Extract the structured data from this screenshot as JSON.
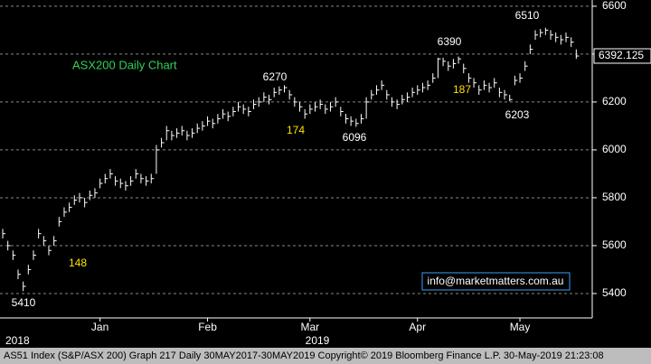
{
  "chart_data": {
    "type": "ohlc",
    "title": "ASX200 Daily Chart",
    "high": [
      5670,
      5620,
      5580,
      5500,
      5450,
      5520,
      5580,
      5670,
      5640,
      5600,
      5640,
      5720,
      5760,
      5780,
      5810,
      5820,
      5800,
      5830,
      5840,
      5880,
      5900,
      5920,
      5890,
      5880,
      5870,
      5890,
      5920,
      5900,
      5890,
      5900,
      6020,
      6050,
      6100,
      6080,
      6090,
      6100,
      6080,
      6090,
      6110,
      6120,
      6140,
      6130,
      6150,
      6170,
      6160,
      6180,
      6200,
      6190,
      6180,
      6210,
      6220,
      6240,
      6230,
      6260,
      6265,
      6270,
      6250,
      6220,
      6200,
      6170,
      6190,
      6200,
      6210,
      6190,
      6200,
      6220,
      6180,
      6150,
      6140,
      6130,
      6150,
      6220,
      6250,
      6270,
      6290,
      6250,
      6220,
      6210,
      6230,
      6240,
      6260,
      6270,
      6280,
      6290,
      6320,
      6385,
      6385,
      6370,
      6380,
      6390,
      6360,
      6320,
      6300,
      6270,
      6290,
      6280,
      6300,
      6260,
      6250,
      6230,
      6310,
      6320,
      6370,
      6440,
      6500,
      6505,
      6510,
      6500,
      6490,
      6480,
      6490,
      6470,
      6420
    ],
    "low": [
      5630,
      5580,
      5540,
      5460,
      5410,
      5480,
      5540,
      5630,
      5600,
      5560,
      5600,
      5680,
      5720,
      5740,
      5770,
      5780,
      5760,
      5790,
      5800,
      5840,
      5860,
      5880,
      5850,
      5840,
      5830,
      5850,
      5880,
      5860,
      5850,
      5860,
      5900,
      6010,
      6040,
      6040,
      6050,
      6060,
      6040,
      6050,
      6070,
      6080,
      6100,
      6090,
      6110,
      6130,
      6120,
      6140,
      6160,
      6150,
      6140,
      6170,
      6180,
      6200,
      6190,
      6220,
      6230,
      6240,
      6210,
      6180,
      6160,
      6130,
      6150,
      6160,
      6170,
      6150,
      6160,
      6180,
      6140,
      6110,
      6100,
      6096,
      6110,
      6130,
      6210,
      6230,
      6250,
      6210,
      6180,
      6170,
      6190,
      6200,
      6220,
      6230,
      6240,
      6250,
      6280,
      6300,
      6350,
      6330,
      6340,
      6360,
      6320,
      6280,
      6260,
      6230,
      6250,
      6240,
      6260,
      6220,
      6210,
      6203,
      6270,
      6280,
      6330,
      6400,
      6460,
      6470,
      6480,
      6460,
      6450,
      6440,
      6450,
      6430,
      6380
    ],
    "close": [
      5650,
      5600,
      5560,
      5480,
      5430,
      5500,
      5560,
      5650,
      5620,
      5580,
      5620,
      5700,
      5740,
      5760,
      5790,
      5800,
      5780,
      5810,
      5820,
      5860,
      5880,
      5900,
      5870,
      5860,
      5850,
      5870,
      5900,
      5880,
      5870,
      5880,
      6000,
      6030,
      6080,
      6060,
      6070,
      6080,
      6060,
      6070,
      6090,
      6100,
      6120,
      6110,
      6130,
      6150,
      6140,
      6160,
      6180,
      6170,
      6160,
      6190,
      6200,
      6220,
      6210,
      6240,
      6250,
      6260,
      6230,
      6200,
      6180,
      6150,
      6170,
      6180,
      6190,
      6170,
      6180,
      6200,
      6160,
      6130,
      6120,
      6110,
      6130,
      6200,
      6230,
      6250,
      6270,
      6230,
      6200,
      6190,
      6210,
      6220,
      6240,
      6250,
      6260,
      6270,
      6300,
      6380,
      6370,
      6350,
      6360,
      6380,
      6340,
      6300,
      6280,
      6250,
      6270,
      6260,
      6280,
      6240,
      6230,
      6210,
      6290,
      6300,
      6350,
      6420,
      6480,
      6490,
      6500,
      6480,
      6470,
      6460,
      6470,
      6450,
      6392
    ],
    "color": "#ffffff",
    "ylim": [
      5298,
      6626
    ],
    "yticks": [
      5400,
      5600,
      5800,
      6000,
      6200,
      6400,
      6600
    ],
    "grid": true,
    "xticks": [
      {
        "value": 19,
        "label": "Jan"
      },
      {
        "value": 40,
        "label": "Feb"
      },
      {
        "value": 60,
        "label": "Mar"
      },
      {
        "value": 81,
        "label": "Apr"
      },
      {
        "value": 101,
        "label": "May"
      }
    ],
    "year_labels": [
      "2018",
      "2019"
    ],
    "last_price": 6392.125,
    "annotations": [
      "6510",
      "6390",
      "6270",
      "6096",
      "6203",
      "5410"
    ],
    "highlights": [
      "148",
      "174",
      "187"
    ],
    "watermark": "info@marketmatters.com.au",
    "footer": "AS51 Index (S&P/ASX 200) Graph 217  Daily 30MAY2017-30MAY2019    Copyright© 2019 Bloomberg Finance L.P.     30-May-2019 21:23:08"
  }
}
